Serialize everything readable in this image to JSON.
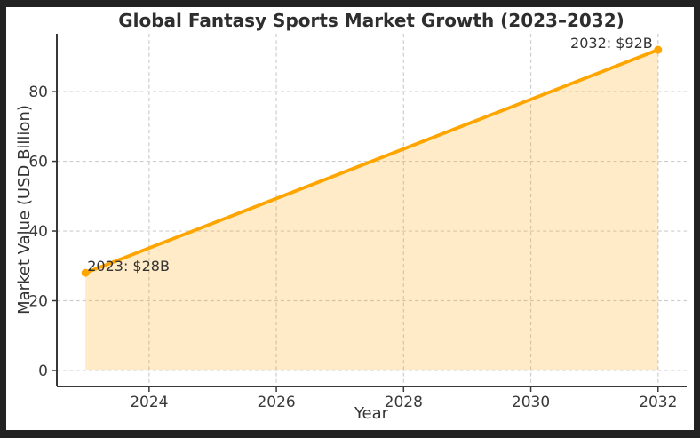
{
  "window": {
    "border_color": "#222222",
    "figure_background": "#ffffff"
  },
  "chart_data": {
    "type": "area",
    "title": "Global Fantasy Sports Market Growth (2023–2032)",
    "xlabel": "Year",
    "ylabel": "Market Value (USD Billion)",
    "series": [
      {
        "name": "Market Value (USD Billion)",
        "x": [
          2023,
          2032
        ],
        "values": [
          28,
          92
        ]
      }
    ],
    "x_ticks": [
      2024,
      2026,
      2028,
      2030,
      2032
    ],
    "x_tick_labels": [
      "2024",
      "2026",
      "2028",
      "2030",
      "2032"
    ],
    "y_ticks": [
      0,
      20,
      40,
      60,
      80
    ],
    "y_tick_labels": [
      "0",
      "20",
      "40",
      "60",
      "80"
    ],
    "xlim": [
      2022.55,
      2032.45
    ],
    "ylim": [
      -4.6,
      96.6
    ],
    "grid": {
      "visible": true,
      "style": "dashed",
      "color": "#cdcdcd"
    },
    "legend": "none",
    "annotations": [
      {
        "text": "2023: $28B",
        "x": 2023,
        "y": 28,
        "align": "left"
      },
      {
        "text": "2032: $92B",
        "x": 2032,
        "y": 92,
        "align": "right"
      }
    ],
    "line_color": "#FFA500",
    "marker_color": "#FFA500",
    "fill_color": "rgba(255,165,0,0.22)",
    "baseline_value": 0
  }
}
